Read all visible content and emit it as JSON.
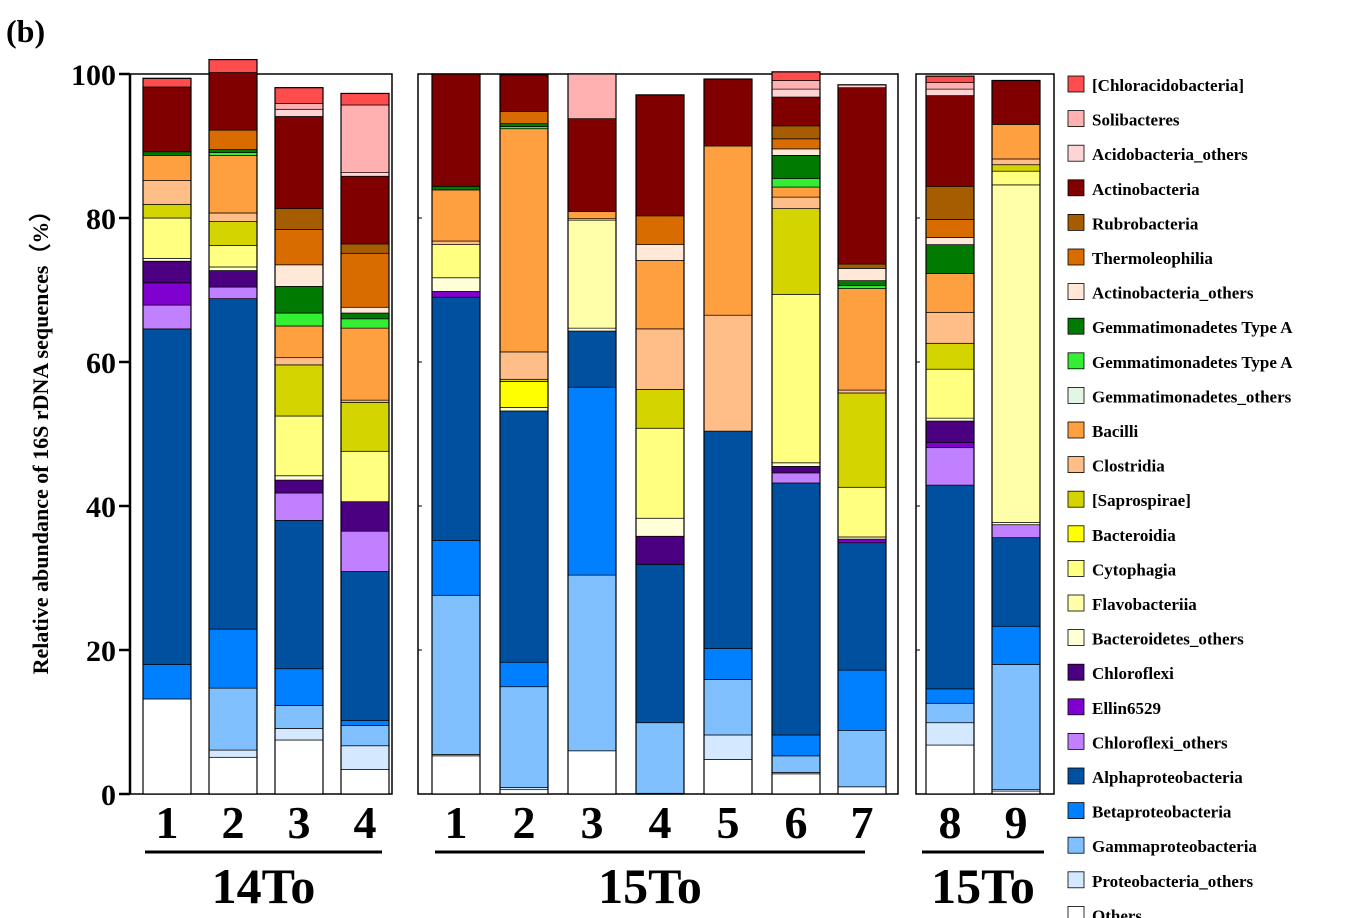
{
  "panel_label": "(b)",
  "chart_data": {
    "type": "bar",
    "stacked": true,
    "ylabel": "Relative abundance of 16S rDNA sequences（%）",
    "xlabel": "",
    "ylim": [
      0,
      100
    ],
    "yticks": [
      0,
      20,
      40,
      60,
      80,
      100
    ],
    "legend_position": "right",
    "groups": [
      {
        "label": "14To",
        "categories": [
          "1",
          "2",
          "3",
          "4"
        ]
      },
      {
        "label": "15To",
        "categories": [
          "1",
          "2",
          "3",
          "4",
          "5",
          "6",
          "7"
        ]
      },
      {
        "label": "15To",
        "categories": [
          "8",
          "9"
        ]
      }
    ],
    "series": [
      {
        "name": "[Chloracidobacteria]",
        "color": "#FF4D4D",
        "values": [
          1.2,
          1.8,
          2.2,
          1.6,
          0,
          0,
          0,
          0,
          0,
          1.2,
          0,
          0.9,
          0
        ]
      },
      {
        "name": "Solibacteres",
        "color": "#FFB0B0",
        "values": [
          0,
          0,
          0.8,
          9.4,
          0,
          0,
          6.2,
          0,
          0,
          1.2,
          0,
          0.9,
          0
        ]
      },
      {
        "name": "Acidobacteria_others",
        "color": "#FFD4D4",
        "values": [
          0,
          0,
          1.0,
          0.5,
          0,
          0,
          0,
          0,
          0,
          1.1,
          0.4,
          0.9,
          0
        ]
      },
      {
        "name": "Actinobacteria",
        "color": "#800000",
        "values": [
          9.0,
          8.0,
          12.8,
          9.4,
          15.6,
          5.1,
          12.9,
          16.8,
          9.3,
          4.0,
          24.5,
          12.6,
          6.1
        ]
      },
      {
        "name": "Rubrobacteria",
        "color": "#A65C00",
        "values": [
          0,
          0,
          2.9,
          1.3,
          0,
          0,
          0,
          0,
          0,
          1.8,
          0.6,
          4.6,
          0
        ]
      },
      {
        "name": "Thermoleophilia",
        "color": "#D96C00",
        "values": [
          0,
          2.7,
          4.9,
          7.5,
          0,
          1.7,
          0,
          4.0,
          0,
          1.4,
          0,
          2.5,
          0
        ]
      },
      {
        "name": "Actinobacteria_others",
        "color": "#FFE8D8",
        "values": [
          0,
          0,
          3.0,
          0.8,
          0,
          0,
          0,
          2.2,
          0,
          0.9,
          1.7,
          1.0,
          0
        ]
      },
      {
        "name": "Gemmatimonadetes Type A",
        "color": "#007A00",
        "values": [
          0.5,
          0.4,
          3.7,
          0.8,
          0.5,
          0.4,
          0,
          0,
          0,
          3.2,
          0.7,
          4.0,
          0
        ]
      },
      {
        "name": "Gemmatimonadetes Type A",
        "color": "#33EE33",
        "values": [
          0,
          0.4,
          1.8,
          1.3,
          0,
          0.3,
          0,
          0,
          0,
          1.2,
          0.4,
          0,
          0
        ]
      },
      {
        "name": "Gemmatimonadetes_others",
        "color": "#E3F5E3",
        "values": [
          0,
          0,
          0,
          0,
          0,
          0,
          0,
          0,
          0,
          0,
          0,
          0,
          0
        ]
      },
      {
        "name": "Bacilli",
        "color": "#FFA040",
        "values": [
          3.5,
          8.0,
          4.4,
          10.0,
          7.1,
          31.0,
          1.0,
          9.5,
          23.5,
          1.4,
          14.1,
          5.4,
          4.8
        ]
      },
      {
        "name": "Clostridia",
        "color": "#FFBE88",
        "values": [
          3.3,
          1.2,
          1.0,
          0.3,
          0.5,
          3.8,
          0,
          8.4,
          16.1,
          1.6,
          0.4,
          4.3,
          0.8
        ]
      },
      {
        "name": "[Saprospirae]",
        "color": "#D4D400",
        "values": [
          1.9,
          3.3,
          7.1,
          6.8,
          0,
          0.3,
          0,
          5.4,
          0,
          11.9,
          13.1,
          3.6,
          0.9
        ]
      },
      {
        "name": "Bacteroidia",
        "color": "#FFFF00",
        "values": [
          0,
          0,
          0,
          0,
          0,
          3.6,
          0,
          0,
          0,
          0,
          0,
          0,
          0
        ]
      },
      {
        "name": "Cytophagia",
        "color": "#FFFF80",
        "values": [
          5.6,
          3.0,
          8.3,
          7.0,
          4.6,
          0,
          0.2,
          12.5,
          0,
          23.4,
          6.9,
          6.8,
          1.9
        ]
      },
      {
        "name": "Flavobacteriia",
        "color": "#FFFFAA",
        "values": [
          0,
          0,
          0,
          0,
          0,
          0,
          15.0,
          0,
          0,
          0,
          0,
          0,
          46.9
        ]
      },
      {
        "name": "Bacteroidetes_others",
        "color": "#FFFFD8",
        "values": [
          0.4,
          0.5,
          0.6,
          0,
          1.9,
          0.5,
          0.4,
          2.5,
          0,
          0.5,
          0.3,
          0.4,
          0.3
        ]
      },
      {
        "name": "Chloroflexi",
        "color": "#4B0082",
        "values": [
          3.0,
          2.3,
          1.8,
          4.1,
          0,
          0,
          0,
          3.9,
          0,
          0.9,
          0,
          3.0,
          0
        ]
      },
      {
        "name": "Ellin6529",
        "color": "#8000D0",
        "values": [
          3.1,
          0,
          0,
          0,
          0.8,
          0,
          0,
          0,
          0,
          0,
          0.5,
          0.7,
          0
        ]
      },
      {
        "name": "Chloroflexi_others",
        "color": "#C080FF",
        "values": [
          3.3,
          1.6,
          3.8,
          5.6,
          0,
          0,
          0,
          0,
          0,
          1.4,
          0,
          5.2,
          1.8
        ]
      },
      {
        "name": "Alphaproteobacteria",
        "color": "#0050A0",
        "values": [
          46.6,
          45.9,
          20.6,
          20.7,
          33.8,
          34.9,
          7.8,
          22.0,
          30.2,
          35.0,
          17.7,
          28.3,
          12.3
        ]
      },
      {
        "name": "Betaproteobacteria",
        "color": "#0080FF",
        "values": [
          4.8,
          8.2,
          5.1,
          0.7,
          7.6,
          3.4,
          26.1,
          0,
          4.3,
          2.9,
          8.4,
          2.0,
          5.3
        ]
      },
      {
        "name": "Gammaproteobacteria",
        "color": "#80C0FF",
        "values": [
          0,
          8.6,
          3.2,
          2.8,
          22.1,
          14.0,
          24.4,
          9.8,
          7.7,
          2.3,
          7.8,
          2.7,
          17.4
        ]
      },
      {
        "name": "Proteobacteria_others",
        "color": "#D4E8FF",
        "values": [
          0,
          1.0,
          1.6,
          3.3,
          0.2,
          0.3,
          0,
          0,
          3.4,
          0.2,
          0,
          3.1,
          0.2
        ]
      },
      {
        "name": "Others",
        "color": "#FFFFFF",
        "values": [
          13.2,
          5.1,
          7.5,
          3.4,
          5.3,
          0.6,
          6.0,
          0.1,
          4.8,
          2.8,
          1.0,
          6.8,
          0.4
        ]
      }
    ]
  }
}
